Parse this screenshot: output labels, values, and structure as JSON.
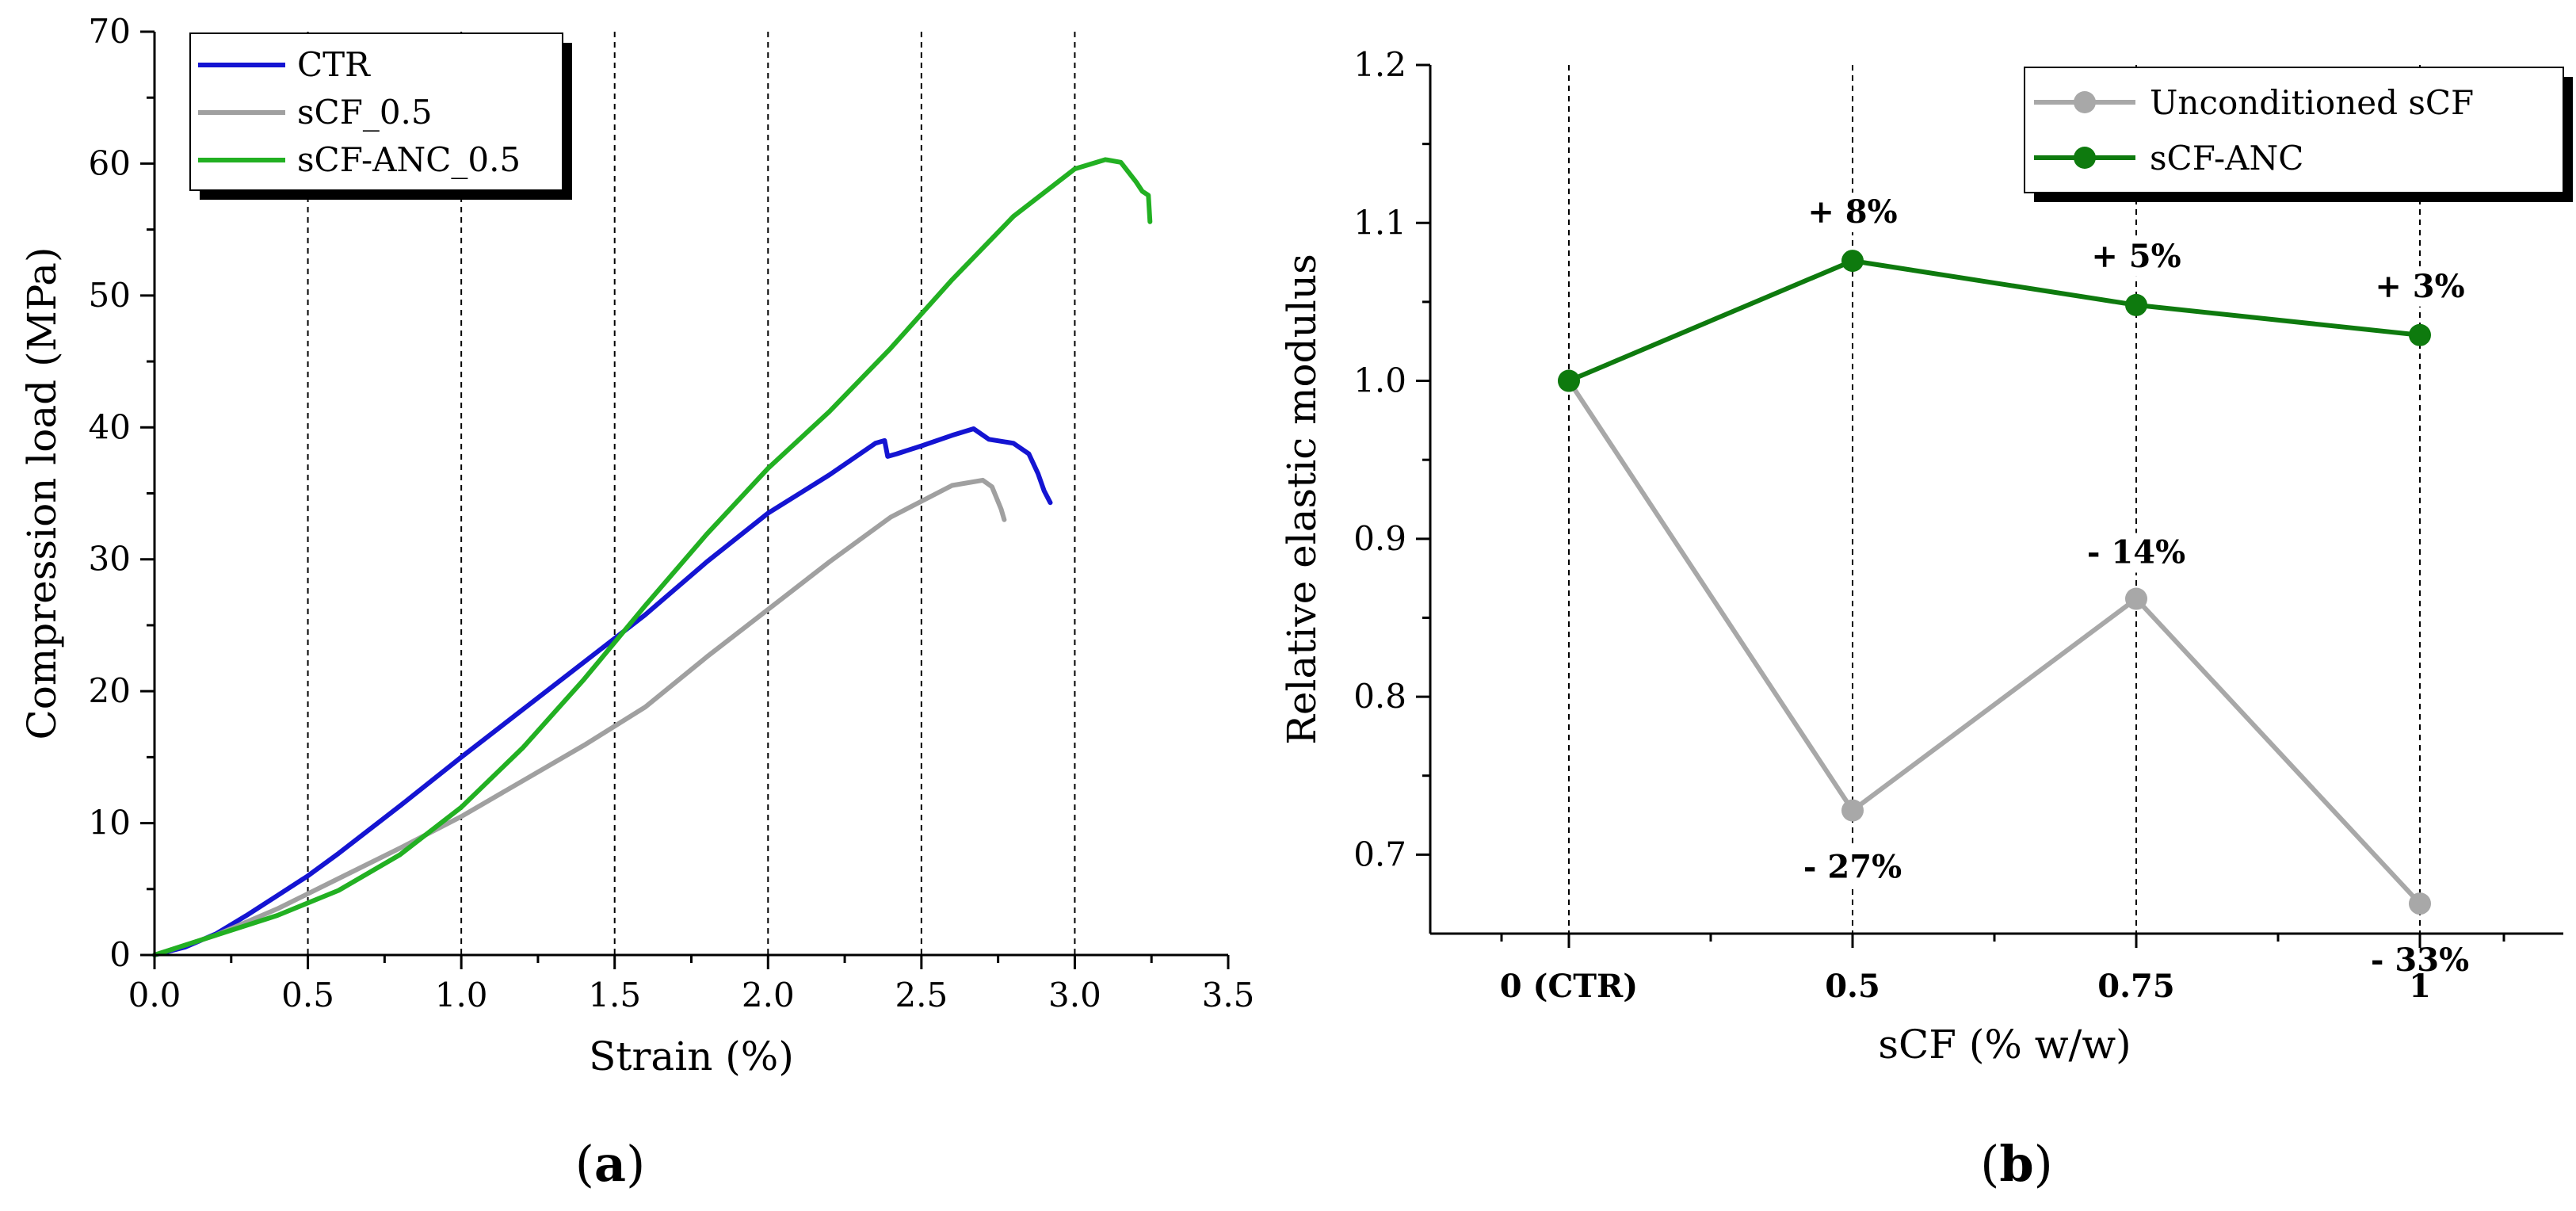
{
  "chart_data": [
    {
      "id": "a",
      "type": "line",
      "panel_label": "(a)",
      "panel_letter": "a",
      "xlabel": "Strain (%)",
      "ylabel": "Compression load (MPa)",
      "xlim": [
        0,
        3.5
      ],
      "ylim": [
        0,
        70
      ],
      "xticks": [
        0.0,
        0.5,
        1.0,
        1.5,
        2.0,
        2.5,
        3.0,
        3.5
      ],
      "xtick_labels": [
        "0.0",
        "0.5",
        "1.0",
        "1.5",
        "2.0",
        "2.5",
        "3.0",
        "3.5"
      ],
      "yticks": [
        0,
        10,
        20,
        30,
        40,
        50,
        60,
        70
      ],
      "ytick_labels": [
        "0",
        "10",
        "20",
        "30",
        "40",
        "50",
        "60",
        "70"
      ],
      "vertical_dashed_lines_at": [
        0.5,
        1.0,
        1.5,
        2.0,
        2.5,
        3.0
      ],
      "legend_position": "top-left",
      "series": [
        {
          "name": "CTR",
          "color": "#1414d2",
          "x": [
            0,
            0.1,
            0.2,
            0.3,
            0.4,
            0.5,
            0.6,
            0.8,
            1.0,
            1.2,
            1.4,
            1.6,
            1.8,
            2.0,
            2.2,
            2.35,
            2.38,
            2.39,
            2.42,
            2.5,
            2.6,
            2.67,
            2.72,
            2.8,
            2.85,
            2.88,
            2.9,
            2.92
          ],
          "y": [
            0,
            0.6,
            1.6,
            3.0,
            4.5,
            6.0,
            7.7,
            11.3,
            15.0,
            18.6,
            22.2,
            25.8,
            29.8,
            33.5,
            36.4,
            38.8,
            39.0,
            37.8,
            38.0,
            38.6,
            39.4,
            39.9,
            39.1,
            38.8,
            38.0,
            36.5,
            35.2,
            34.3
          ]
        },
        {
          "name": "sCF_0.5",
          "color": "#a0a0a0",
          "x": [
            0,
            0.2,
            0.4,
            0.6,
            0.8,
            1.0,
            1.2,
            1.4,
            1.6,
            1.8,
            2.0,
            2.2,
            2.4,
            2.6,
            2.7,
            2.73,
            2.76,
            2.77
          ],
          "y": [
            0,
            1.5,
            3.5,
            5.8,
            8.1,
            10.5,
            13.2,
            15.9,
            18.8,
            22.6,
            26.2,
            29.8,
            33.2,
            35.6,
            36.0,
            35.5,
            33.8,
            33.0
          ]
        },
        {
          "name": "sCF-ANC_0.5",
          "color": "#22b022",
          "x": [
            0,
            0.2,
            0.4,
            0.6,
            0.8,
            1.0,
            1.2,
            1.4,
            1.6,
            1.8,
            2.0,
            2.2,
            2.4,
            2.6,
            2.8,
            3.0,
            3.1,
            3.15,
            3.2,
            3.22,
            3.24,
            3.245
          ],
          "y": [
            0,
            1.5,
            3.0,
            4.9,
            7.6,
            11.2,
            15.7,
            20.9,
            26.5,
            31.9,
            36.9,
            41.2,
            46.0,
            51.2,
            56.0,
            59.6,
            60.3,
            60.1,
            58.6,
            57.9,
            57.6,
            55.6
          ]
        }
      ]
    },
    {
      "id": "b",
      "type": "line",
      "panel_label": "(b)",
      "panel_letter": "b",
      "xlabel": "sCF (% w/w)",
      "ylabel": "Relative elastic modulus",
      "categories": [
        "0 (CTR)",
        "0.5",
        "0.75",
        "1"
      ],
      "ylim": [
        0.65,
        1.2
      ],
      "yticks": [
        0.7,
        0.8,
        0.9,
        1.0,
        1.1,
        1.2
      ],
      "ytick_labels": [
        "0.7",
        "0.8",
        "0.9",
        "1.0",
        "1.1",
        "1.2"
      ],
      "vertical_dashed_lines_at_categories": true,
      "legend_position": "top-right",
      "series": [
        {
          "name": "Unconditioned sCF",
          "color": "#a8a8a8",
          "values": [
            1.0,
            0.728,
            0.862,
            0.669
          ],
          "annotations": [
            "",
            "- 27%",
            "- 14%",
            "- 33%"
          ]
        },
        {
          "name": "sCF-ANC",
          "color": "#0e7a0e",
          "values": [
            1.0,
            1.076,
            1.048,
            1.029
          ],
          "annotations": [
            "",
            "+ 8%",
            "+ 5%",
            "+ 3%"
          ]
        }
      ]
    }
  ]
}
